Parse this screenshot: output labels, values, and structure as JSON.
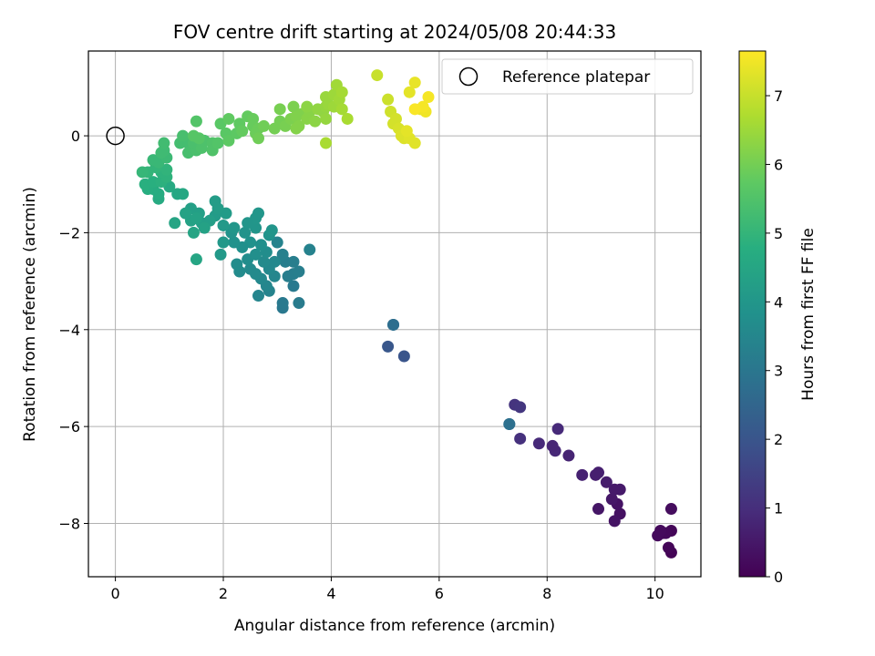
{
  "chart_data": {
    "type": "scatter",
    "title": "FOV centre drift starting at 2024/05/08 20:44:33",
    "xlabel": "Angular distance from reference (arcmin)",
    "ylabel": "Rotation from reference (arcmin)",
    "colorbar_label": "Hours from first FF file",
    "xlim": [
      -0.5,
      10.85
    ],
    "ylim": [
      -9.1,
      1.75
    ],
    "xticks": [
      0,
      2,
      4,
      6,
      8,
      10
    ],
    "yticks": [
      0,
      -2,
      -4,
      -6,
      -8
    ],
    "colorbar_range": [
      0,
      7.65
    ],
    "colorbar_ticks": [
      0,
      1,
      2,
      3,
      4,
      5,
      6,
      7
    ],
    "colormap": "viridis",
    "grid": true,
    "legend": {
      "placement": "top-right",
      "entries": [
        {
          "label": "Reference platepar",
          "marker": "open-circle",
          "x": 0,
          "y": 0
        }
      ]
    },
    "points": [
      {
        "x": 10.3,
        "y": -8.6,
        "h": 0.05
      },
      {
        "x": 10.25,
        "y": -8.5,
        "h": 0.1
      },
      {
        "x": 10.3,
        "y": -8.15,
        "h": 0.1
      },
      {
        "x": 10.15,
        "y": -8.2,
        "h": 0.15
      },
      {
        "x": 10.05,
        "y": -8.25,
        "h": 0.2
      },
      {
        "x": 10.2,
        "y": -8.2,
        "h": 0.15
      },
      {
        "x": 10.3,
        "y": -7.7,
        "h": 0.25
      },
      {
        "x": 10.1,
        "y": -8.15,
        "h": 0.2
      },
      {
        "x": 9.35,
        "y": -7.8,
        "h": 0.35
      },
      {
        "x": 9.25,
        "y": -7.95,
        "h": 0.4
      },
      {
        "x": 9.3,
        "y": -7.6,
        "h": 0.4
      },
      {
        "x": 8.95,
        "y": -7.7,
        "h": 0.45
      },
      {
        "x": 9.2,
        "y": -7.5,
        "h": 0.5
      },
      {
        "x": 9.35,
        "y": -7.3,
        "h": 0.55
      },
      {
        "x": 9.25,
        "y": -7.3,
        "h": 0.55
      },
      {
        "x": 9.1,
        "y": -7.15,
        "h": 0.6
      },
      {
        "x": 8.9,
        "y": -7.0,
        "h": 0.65
      },
      {
        "x": 8.95,
        "y": -6.95,
        "h": 0.65
      },
      {
        "x": 8.65,
        "y": -7.0,
        "h": 0.7
      },
      {
        "x": 8.4,
        "y": -6.6,
        "h": 0.75
      },
      {
        "x": 8.15,
        "y": -6.5,
        "h": 0.85
      },
      {
        "x": 8.1,
        "y": -6.4,
        "h": 0.8
      },
      {
        "x": 7.85,
        "y": -6.35,
        "h": 0.9
      },
      {
        "x": 8.2,
        "y": -6.05,
        "h": 0.9
      },
      {
        "x": 7.5,
        "y": -6.25,
        "h": 1.05
      },
      {
        "x": 7.4,
        "y": -5.55,
        "h": 1.15
      },
      {
        "x": 7.5,
        "y": -5.6,
        "h": 1.2
      },
      {
        "x": 7.3,
        "y": -5.95,
        "h": 2.65
      },
      {
        "x": 7.3,
        "y": -5.95,
        "h": 2.8
      },
      {
        "x": 5.05,
        "y": -4.35,
        "h": 2.05
      },
      {
        "x": 5.35,
        "y": -4.55,
        "h": 2.0
      },
      {
        "x": 5.15,
        "y": -3.9,
        "h": 2.7
      },
      {
        "x": 5.15,
        "y": -3.9,
        "h": 2.75
      },
      {
        "x": 3.1,
        "y": -3.55,
        "h": 3.05
      },
      {
        "x": 3.1,
        "y": -3.45,
        "h": 3.1
      },
      {
        "x": 3.4,
        "y": -3.45,
        "h": 3.15
      },
      {
        "x": 3.3,
        "y": -3.1,
        "h": 3.1
      },
      {
        "x": 3.2,
        "y": -2.9,
        "h": 3.2
      },
      {
        "x": 3.3,
        "y": -2.85,
        "h": 3.2
      },
      {
        "x": 3.4,
        "y": -2.8,
        "h": 3.25
      },
      {
        "x": 3.15,
        "y": -2.6,
        "h": 3.2
      },
      {
        "x": 3.3,
        "y": -2.6,
        "h": 3.25
      },
      {
        "x": 3.1,
        "y": -2.45,
        "h": 3.3
      },
      {
        "x": 3.0,
        "y": -2.2,
        "h": 3.4
      },
      {
        "x": 3.6,
        "y": -2.35,
        "h": 3.35
      },
      {
        "x": 2.85,
        "y": -3.2,
        "h": 3.4
      },
      {
        "x": 2.65,
        "y": -3.3,
        "h": 3.45
      },
      {
        "x": 2.8,
        "y": -3.1,
        "h": 3.5
      },
      {
        "x": 2.95,
        "y": -2.9,
        "h": 3.5
      },
      {
        "x": 2.7,
        "y": -2.95,
        "h": 3.55
      },
      {
        "x": 2.6,
        "y": -2.85,
        "h": 3.6
      },
      {
        "x": 2.85,
        "y": -2.75,
        "h": 3.55
      },
      {
        "x": 2.95,
        "y": -2.6,
        "h": 3.55
      },
      {
        "x": 2.75,
        "y": -2.6,
        "h": 3.6
      },
      {
        "x": 2.5,
        "y": -2.75,
        "h": 3.6
      },
      {
        "x": 2.3,
        "y": -2.8,
        "h": 3.65
      },
      {
        "x": 2.25,
        "y": -2.65,
        "h": 3.7
      },
      {
        "x": 2.45,
        "y": -2.55,
        "h": 3.7
      },
      {
        "x": 2.6,
        "y": -2.45,
        "h": 3.75
      },
      {
        "x": 2.8,
        "y": -2.4,
        "h": 3.7
      },
      {
        "x": 2.7,
        "y": -2.25,
        "h": 3.8
      },
      {
        "x": 2.5,
        "y": -2.2,
        "h": 3.85
      },
      {
        "x": 2.35,
        "y": -2.3,
        "h": 3.8
      },
      {
        "x": 2.2,
        "y": -2.2,
        "h": 3.85
      },
      {
        "x": 2.15,
        "y": -2.0,
        "h": 3.9
      },
      {
        "x": 2.4,
        "y": -2.0,
        "h": 3.9
      },
      {
        "x": 2.6,
        "y": -1.9,
        "h": 3.95
      },
      {
        "x": 2.85,
        "y": -2.05,
        "h": 3.9
      },
      {
        "x": 2.9,
        "y": -1.95,
        "h": 3.95
      },
      {
        "x": 2.6,
        "y": -1.7,
        "h": 4.0
      },
      {
        "x": 2.45,
        "y": -1.8,
        "h": 3.95
      },
      {
        "x": 2.65,
        "y": -1.6,
        "h": 4.0
      },
      {
        "x": 2.2,
        "y": -1.9,
        "h": 4.0
      },
      {
        "x": 2.0,
        "y": -2.2,
        "h": 4.05
      },
      {
        "x": 1.95,
        "y": -2.45,
        "h": 4.1
      },
      {
        "x": 2.0,
        "y": -1.85,
        "h": 4.1
      },
      {
        "x": 1.85,
        "y": -1.65,
        "h": 4.15
      },
      {
        "x": 2.05,
        "y": -1.6,
        "h": 4.15
      },
      {
        "x": 1.85,
        "y": -1.35,
        "h": 4.2
      },
      {
        "x": 1.9,
        "y": -1.5,
        "h": 4.2
      },
      {
        "x": 1.75,
        "y": -1.75,
        "h": 4.25
      },
      {
        "x": 1.6,
        "y": -1.8,
        "h": 4.25
      },
      {
        "x": 1.55,
        "y": -1.6,
        "h": 4.3
      },
      {
        "x": 1.4,
        "y": -1.5,
        "h": 4.3
      },
      {
        "x": 1.4,
        "y": -1.75,
        "h": 4.35
      },
      {
        "x": 1.3,
        "y": -1.6,
        "h": 4.4
      },
      {
        "x": 1.5,
        "y": -1.7,
        "h": 4.4
      },
      {
        "x": 1.45,
        "y": -2.0,
        "h": 4.45
      },
      {
        "x": 1.65,
        "y": -1.9,
        "h": 4.35
      },
      {
        "x": 1.1,
        "y": -1.8,
        "h": 4.45
      },
      {
        "x": 1.5,
        "y": -2.55,
        "h": 4.5
      },
      {
        "x": 1.25,
        "y": -1.2,
        "h": 4.55
      },
      {
        "x": 1.15,
        "y": -1.2,
        "h": 4.55
      },
      {
        "x": 1.0,
        "y": -1.05,
        "h": 4.6
      },
      {
        "x": 0.8,
        "y": -1.3,
        "h": 4.65
      },
      {
        "x": 0.8,
        "y": -1.2,
        "h": 4.7
      },
      {
        "x": 0.7,
        "y": -1.1,
        "h": 4.7
      },
      {
        "x": 0.6,
        "y": -1.1,
        "h": 4.75
      },
      {
        "x": 0.55,
        "y": -1.0,
        "h": 4.8
      },
      {
        "x": 0.7,
        "y": -0.95,
        "h": 4.8
      },
      {
        "x": 0.85,
        "y": -0.95,
        "h": 4.85
      },
      {
        "x": 0.95,
        "y": -0.85,
        "h": 4.9
      },
      {
        "x": 0.85,
        "y": -0.75,
        "h": 4.9
      },
      {
        "x": 0.95,
        "y": -0.7,
        "h": 4.95
      },
      {
        "x": 0.75,
        "y": -0.65,
        "h": 5.0
      },
      {
        "x": 0.6,
        "y": -0.75,
        "h": 5.0
      },
      {
        "x": 0.5,
        "y": -0.75,
        "h": 5.05
      },
      {
        "x": 0.7,
        "y": -0.5,
        "h": 5.1
      },
      {
        "x": 0.8,
        "y": -0.55,
        "h": 5.1
      },
      {
        "x": 0.95,
        "y": -0.45,
        "h": 5.15
      },
      {
        "x": 0.85,
        "y": -0.35,
        "h": 5.2
      },
      {
        "x": 0.9,
        "y": -0.3,
        "h": 5.2
      },
      {
        "x": 0.9,
        "y": -0.15,
        "h": 5.25
      },
      {
        "x": 1.2,
        "y": -0.15,
        "h": 5.3
      },
      {
        "x": 1.35,
        "y": -0.15,
        "h": 5.3
      },
      {
        "x": 1.25,
        "y": 0.0,
        "h": 5.35
      },
      {
        "x": 1.35,
        "y": -0.35,
        "h": 5.35
      },
      {
        "x": 1.5,
        "y": -0.3,
        "h": 5.4
      },
      {
        "x": 1.45,
        "y": -0.15,
        "h": 5.4
      },
      {
        "x": 1.6,
        "y": -0.25,
        "h": 5.45
      },
      {
        "x": 1.65,
        "y": -0.1,
        "h": 5.45
      },
      {
        "x": 1.8,
        "y": -0.15,
        "h": 5.5
      },
      {
        "x": 1.8,
        "y": -0.3,
        "h": 5.5
      },
      {
        "x": 1.9,
        "y": -0.15,
        "h": 5.55
      },
      {
        "x": 1.5,
        "y": 0.3,
        "h": 5.55
      },
      {
        "x": 1.55,
        "y": -0.05,
        "h": 5.6
      },
      {
        "x": 1.45,
        "y": 0.0,
        "h": 5.6
      },
      {
        "x": 2.05,
        "y": 0.05,
        "h": 5.65
      },
      {
        "x": 1.95,
        "y": 0.25,
        "h": 5.65
      },
      {
        "x": 2.1,
        "y": -0.1,
        "h": 5.7
      },
      {
        "x": 2.25,
        "y": 0.05,
        "h": 5.7
      },
      {
        "x": 2.1,
        "y": 0.35,
        "h": 5.75
      },
      {
        "x": 2.3,
        "y": 0.25,
        "h": 5.75
      },
      {
        "x": 2.35,
        "y": 0.1,
        "h": 5.8
      },
      {
        "x": 2.45,
        "y": 0.4,
        "h": 5.8
      },
      {
        "x": 2.55,
        "y": 0.35,
        "h": 5.85
      },
      {
        "x": 2.55,
        "y": 0.2,
        "h": 5.85
      },
      {
        "x": 2.65,
        "y": 0.15,
        "h": 5.9
      },
      {
        "x": 2.6,
        "y": 0.05,
        "h": 5.9
      },
      {
        "x": 2.75,
        "y": 0.2,
        "h": 5.95
      },
      {
        "x": 2.65,
        "y": -0.05,
        "h": 5.95
      },
      {
        "x": 2.95,
        "y": 0.15,
        "h": 6.0
      },
      {
        "x": 3.05,
        "y": 0.3,
        "h": 6.0
      },
      {
        "x": 3.15,
        "y": 0.2,
        "h": 6.05
      },
      {
        "x": 3.05,
        "y": 0.55,
        "h": 6.05
      },
      {
        "x": 3.25,
        "y": 0.35,
        "h": 6.1
      },
      {
        "x": 3.3,
        "y": 0.6,
        "h": 6.1
      },
      {
        "x": 3.35,
        "y": 0.4,
        "h": 6.15
      },
      {
        "x": 3.45,
        "y": 0.45,
        "h": 6.15
      },
      {
        "x": 3.4,
        "y": 0.2,
        "h": 6.2
      },
      {
        "x": 3.35,
        "y": 0.15,
        "h": 6.2
      },
      {
        "x": 3.55,
        "y": 0.35,
        "h": 6.25
      },
      {
        "x": 3.6,
        "y": 0.5,
        "h": 6.25
      },
      {
        "x": 3.55,
        "y": 0.6,
        "h": 6.3
      },
      {
        "x": 3.7,
        "y": 0.3,
        "h": 6.3
      },
      {
        "x": 3.75,
        "y": 0.55,
        "h": 6.35
      },
      {
        "x": 3.85,
        "y": 0.5,
        "h": 6.35
      },
      {
        "x": 3.9,
        "y": 0.35,
        "h": 6.4
      },
      {
        "x": 3.9,
        "y": 0.6,
        "h": 6.4
      },
      {
        "x": 3.9,
        "y": 0.8,
        "h": 6.45
      },
      {
        "x": 3.95,
        "y": 0.65,
        "h": 6.45
      },
      {
        "x": 4.05,
        "y": 0.6,
        "h": 6.5
      },
      {
        "x": 4.05,
        "y": 0.85,
        "h": 6.5
      },
      {
        "x": 4.15,
        "y": 0.75,
        "h": 6.55
      },
      {
        "x": 4.1,
        "y": 1.05,
        "h": 6.55
      },
      {
        "x": 4.2,
        "y": 0.9,
        "h": 6.6
      },
      {
        "x": 4.2,
        "y": 0.55,
        "h": 6.6
      },
      {
        "x": 4.3,
        "y": 0.35,
        "h": 6.65
      },
      {
        "x": 3.9,
        "y": -0.15,
        "h": 6.65
      },
      {
        "x": 4.85,
        "y": 1.25,
        "h": 7.0
      },
      {
        "x": 5.05,
        "y": 0.75,
        "h": 7.05
      },
      {
        "x": 5.1,
        "y": 0.5,
        "h": 7.1
      },
      {
        "x": 5.15,
        "y": 0.25,
        "h": 7.15
      },
      {
        "x": 5.2,
        "y": 0.35,
        "h": 7.15
      },
      {
        "x": 5.25,
        "y": 0.15,
        "h": 7.2
      },
      {
        "x": 5.3,
        "y": 0.0,
        "h": 7.25
      },
      {
        "x": 5.35,
        "y": -0.05,
        "h": 7.25
      },
      {
        "x": 5.45,
        "y": -0.05,
        "h": 7.3
      },
      {
        "x": 5.55,
        "y": -0.15,
        "h": 7.3
      },
      {
        "x": 5.4,
        "y": 0.1,
        "h": 7.35
      },
      {
        "x": 5.45,
        "y": 0.9,
        "h": 7.35
      },
      {
        "x": 5.55,
        "y": 1.1,
        "h": 7.4
      },
      {
        "x": 5.65,
        "y": 0.55,
        "h": 7.45
      },
      {
        "x": 5.75,
        "y": 0.5,
        "h": 7.5
      },
      {
        "x": 5.7,
        "y": 0.6,
        "h": 7.55
      },
      {
        "x": 5.8,
        "y": 0.8,
        "h": 7.55
      },
      {
        "x": 5.55,
        "y": 0.55,
        "h": 7.6
      }
    ]
  }
}
